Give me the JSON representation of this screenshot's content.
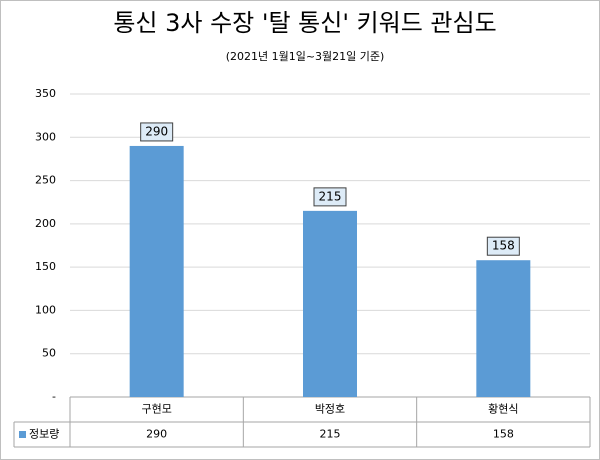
{
  "chart_data": {
    "type": "bar",
    "title": "통신 3사 수장 '탈 통신' 키워드 관심도",
    "subtitle": "(2021년 1월1일~3월21일 기준)",
    "categories": [
      "구현모",
      "박정호",
      "황현식"
    ],
    "series": [
      {
        "name": "정보량",
        "color": "#5b9bd5",
        "values": [
          290,
          215,
          158
        ]
      }
    ],
    "ylim": [
      0,
      350
    ],
    "yticks": [
      {
        "value": 0,
        "label": "-"
      },
      50,
      100,
      150,
      200,
      250,
      300,
      350
    ],
    "grid": true,
    "data_table": true
  }
}
